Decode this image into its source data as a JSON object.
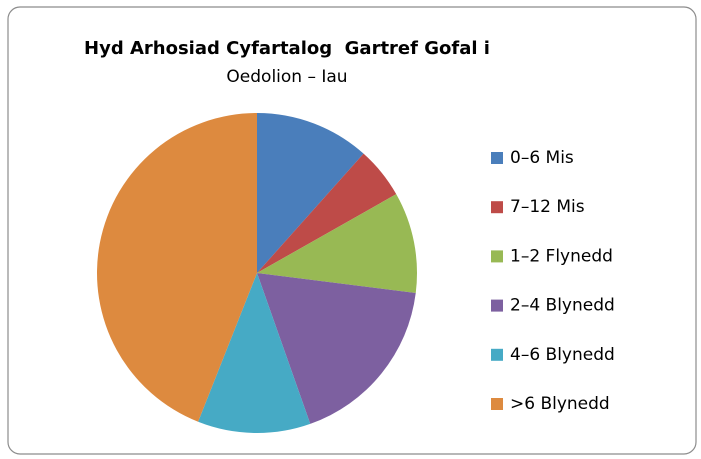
{
  "chart_data": {
    "type": "pie",
    "title": "Hyd Arhosiad Cyfartalog  Gartref Gofal i",
    "subtitle": "Oedolion – Iau",
    "categories": [
      "0–6 Mis",
      "7–12 Mis",
      "1–2 Flynedd",
      "2–4 Blynedd",
      "4–6 Blynedd",
      ">6 Blynedd"
    ],
    "values": [
      11.6,
      5.2,
      10.2,
      17.6,
      11.4,
      44
    ],
    "colors": [
      "#4a7ebb",
      "#be4b48",
      "#98b954",
      "#7d60a0",
      "#46aac5",
      "#dd8a3f"
    ],
    "legend": "right"
  }
}
